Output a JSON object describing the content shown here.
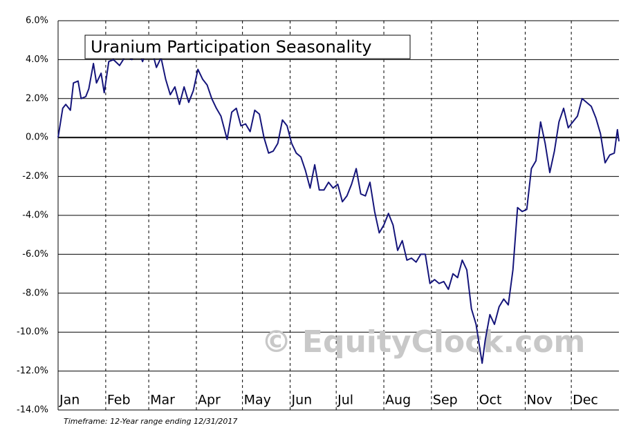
{
  "chart_data": {
    "type": "line",
    "title": "Uranium Participation Seasonality",
    "footnote": "Timeframe: 12-Year range ending 12/31/2017",
    "watermark": "© EquityClock.com",
    "xlim": [
      0,
      365
    ],
    "xticks": [
      {
        "value": 0,
        "label": "Jan"
      },
      {
        "value": 31,
        "label": "Feb"
      },
      {
        "value": 59,
        "label": "Mar"
      },
      {
        "value": 90,
        "label": "Apr"
      },
      {
        "value": 120,
        "label": "May"
      },
      {
        "value": 151,
        "label": "Jun"
      },
      {
        "value": 181,
        "label": "Jul"
      },
      {
        "value": 212,
        "label": "Aug"
      },
      {
        "value": 243,
        "label": "Sep"
      },
      {
        "value": 273,
        "label": "Oct"
      },
      {
        "value": 304,
        "label": "Nov"
      },
      {
        "value": 334,
        "label": "Dec"
      }
    ],
    "ylim": [
      -14,
      6
    ],
    "yticks": [
      {
        "value": 6,
        "label": "6.0%"
      },
      {
        "value": 4,
        "label": "4.0%"
      },
      {
        "value": 2,
        "label": "2.0%"
      },
      {
        "value": 0,
        "label": "0.0%"
      },
      {
        "value": -2,
        "label": "-2.0%"
      },
      {
        "value": -4,
        "label": "-4.0%"
      },
      {
        "value": -6,
        "label": "-6.0%"
      },
      {
        "value": -8,
        "label": "-8.0%"
      },
      {
        "value": -10,
        "label": "-10.0%"
      },
      {
        "value": -12,
        "label": "-12.0%"
      },
      {
        "value": -14,
        "label": "-14.0%"
      }
    ],
    "grid": true,
    "x": [
      0,
      3,
      5,
      8,
      10,
      13,
      15,
      18,
      20,
      23,
      25,
      28,
      30,
      33,
      36,
      40,
      44,
      48,
      52,
      55,
      58,
      61,
      64,
      67,
      70,
      73,
      76,
      79,
      82,
      85,
      88,
      91,
      94,
      97,
      100,
      103,
      106,
      110,
      113,
      116,
      119,
      122,
      125,
      128,
      131,
      134,
      137,
      140,
      143,
      146,
      149,
      152,
      155,
      158,
      161,
      164,
      167,
      170,
      173,
      176,
      179,
      182,
      185,
      188,
      191,
      194,
      197,
      200,
      203,
      206,
      209,
      212,
      215,
      218,
      221,
      224,
      227,
      230,
      233,
      236,
      239,
      242,
      245,
      248,
      251,
      254,
      257,
      260,
      263,
      266,
      269,
      272,
      274,
      276,
      278,
      281,
      284,
      287,
      290,
      293,
      296,
      299,
      302,
      305,
      308,
      311,
      314,
      317,
      320,
      323,
      326,
      329,
      332,
      335,
      338,
      341,
      344,
      347,
      350,
      353,
      356,
      359,
      362,
      364,
      365
    ],
    "series": [
      {
        "color": "#14147a",
        "values": [
          0,
          1.5,
          1.7,
          1.4,
          2.8,
          2.9,
          2.0,
          2.1,
          2.5,
          3.8,
          2.8,
          3.3,
          2.3,
          3.9,
          4.0,
          3.7,
          4.2,
          4.0,
          4.5,
          3.9,
          4.6,
          4.5,
          3.6,
          4.1,
          3.0,
          2.2,
          2.6,
          1.7,
          2.6,
          1.8,
          2.4,
          3.5,
          3.0,
          2.7,
          2.0,
          1.5,
          1.1,
          -0.1,
          1.3,
          1.5,
          0.6,
          0.7,
          0.3,
          1.4,
          1.2,
          0,
          -0.8,
          -0.7,
          -0.3,
          0.9,
          0.6,
          -0.3,
          -0.8,
          -1.0,
          -1.7,
          -2.6,
          -1.4,
          -2.7,
          -2.7,
          -2.3,
          -2.6,
          -2.4,
          -3.3,
          -3.0,
          -2.4,
          -1.6,
          -2.9,
          -3.0,
          -2.3,
          -3.8,
          -4.9,
          -4.5,
          -3.9,
          -4.5,
          -5.8,
          -5.3,
          -6.3,
          -6.2,
          -6.4,
          -6.0,
          -6.0,
          -7.5,
          -7.3,
          -7.5,
          -7.4,
          -7.8,
          -7.0,
          -7.2,
          -6.3,
          -6.8,
          -8.8,
          -9.6,
          -10.6,
          -11.6,
          -10.4,
          -9.1,
          -9.6,
          -8.7,
          -8.3,
          -8.6,
          -6.8,
          -3.6,
          -3.8,
          -3.7,
          -1.6,
          -1.2,
          0.8,
          -0.3,
          -1.8,
          -0.7,
          0.8,
          1.5,
          0.5,
          0.8,
          1.1,
          2.0,
          1.8,
          1.6,
          1.0,
          0.2,
          -1.3,
          -0.9,
          -0.8,
          0.4,
          -0.2
        ]
      }
    ]
  }
}
